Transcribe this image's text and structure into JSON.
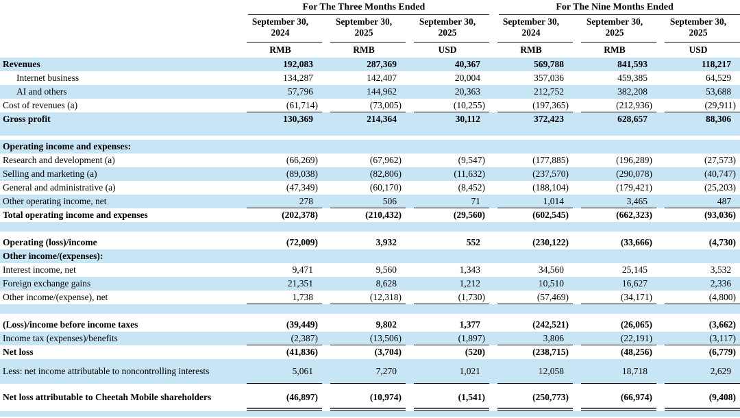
{
  "table": {
    "shade_color": "#c8e5f5",
    "group_headers": [
      {
        "label": "For The Three Months Ended",
        "span": 3
      },
      {
        "label": "For The Nine Months Ended",
        "span": 3
      }
    ],
    "column_headers": [
      "September 30,\n2024",
      "September 30,\n2025",
      "September 30,\n2025",
      "September 30,\n2024",
      "September 30,\n2025",
      "September 30,\n2025"
    ],
    "unit_headers": [
      "RMB",
      "RMB",
      "USD",
      "RMB",
      "RMB",
      "USD"
    ],
    "rows": [
      {
        "label": "Revenues",
        "values": [
          "192,083",
          "287,369",
          "40,367",
          "569,788",
          "841,593",
          "118,217"
        ],
        "bold": true,
        "shaded": true
      },
      {
        "label": "Internet business",
        "values": [
          "134,287",
          "142,407",
          "20,004",
          "357,036",
          "459,385",
          "64,529"
        ],
        "indent": true
      },
      {
        "label": "AI and others",
        "values": [
          "57,796",
          "144,962",
          "20,363",
          "212,752",
          "382,208",
          "53,688"
        ],
        "indent": true,
        "shaded": true
      },
      {
        "label": "Cost of revenues (a)",
        "values": [
          "(61,714)",
          "(73,005)",
          "(10,255)",
          "(197,365)",
          "(212,936)",
          "(29,911)"
        ],
        "rule": "single"
      },
      {
        "label": "Gross profit",
        "values": [
          "130,369",
          "214,364",
          "30,112",
          "372,423",
          "628,657",
          "88,306"
        ],
        "bold": true,
        "shaded": true
      },
      {
        "spacer": true
      },
      {
        "label": "Operating income and expenses:",
        "values": [
          "",
          "",
          "",
          "",
          "",
          ""
        ],
        "bold": true,
        "shaded": true
      },
      {
        "label": "Research and development (a)",
        "values": [
          "(66,269)",
          "(67,962)",
          "(9,547)",
          "(177,885)",
          "(196,289)",
          "(27,573)"
        ]
      },
      {
        "label": "Selling and marketing (a)",
        "values": [
          "(89,038)",
          "(82,806)",
          "(11,632)",
          "(237,570)",
          "(290,078)",
          "(40,747)"
        ],
        "shaded": true
      },
      {
        "label": "General and administrative (a)",
        "values": [
          "(47,349)",
          "(60,170)",
          "(8,452)",
          "(188,104)",
          "(179,421)",
          "(25,203)"
        ]
      },
      {
        "label": "Other operating income, net",
        "values": [
          "278",
          "506",
          "71",
          "1,014",
          "3,465",
          "487"
        ],
        "shaded": true,
        "rule": "single"
      },
      {
        "label": "Total operating income and expenses",
        "values": [
          "(202,378)",
          "(210,432)",
          "(29,560)",
          "(602,545)",
          "(662,323)",
          "(93,036)"
        ],
        "bold": true
      },
      {
        "spacer": true
      },
      {
        "label": "Operating (loss)/income",
        "values": [
          "(72,009)",
          "3,932",
          "552",
          "(230,122)",
          "(33,666)",
          "(4,730)"
        ],
        "bold": true
      },
      {
        "label": "Other income/(expenses):",
        "values": [
          "",
          "",
          "",
          "",
          "",
          ""
        ],
        "bold": true,
        "shaded": true
      },
      {
        "label": "Interest income, net",
        "values": [
          "9,471",
          "9,560",
          "1,343",
          "34,560",
          "25,145",
          "3,532"
        ]
      },
      {
        "label": "Foreign exchange gains",
        "values": [
          "21,351",
          "8,628",
          "1,212",
          "10,510",
          "16,627",
          "2,336"
        ],
        "shaded": true
      },
      {
        "label": "Other income/(expense), net",
        "values": [
          "1,738",
          "(12,318)",
          "(1,730)",
          "(57,469)",
          "(34,171)",
          "(4,800)"
        ],
        "rule": "single"
      },
      {
        "spacer": true
      },
      {
        "label": "(Loss)/income before income taxes",
        "values": [
          "(39,449)",
          "9,802",
          "1,377",
          "(242,521)",
          "(26,065)",
          "(3,662)"
        ],
        "bold": true
      },
      {
        "label": "Income tax (expenses)/benefits",
        "values": [
          "(2,387)",
          "(13,506)",
          "(1,897)",
          "3,806",
          "(22,191)",
          "(3,117)"
        ],
        "shaded": true,
        "rule": "single"
      },
      {
        "label": "Net loss",
        "values": [
          "(41,836)",
          "(3,704)",
          "(520)",
          "(238,715)",
          "(48,256)",
          "(6,779)"
        ],
        "bold": true
      },
      {
        "label": "Less: net income attributable to noncontrolling interests",
        "values": [
          "5,061",
          "7,270",
          "1,021",
          "12,058",
          "18,718",
          "2,629"
        ],
        "shaded": true,
        "rule": "single",
        "tall": true
      },
      {
        "label": "Net loss attributable to Cheetah Mobile shareholders",
        "values": [
          "(46,897)",
          "(10,974)",
          "(1,541)",
          "(250,773)",
          "(66,974)",
          "(9,408)"
        ],
        "bold": true,
        "rule": "double",
        "tall": true
      },
      {
        "spacer": true,
        "final": true
      }
    ]
  }
}
